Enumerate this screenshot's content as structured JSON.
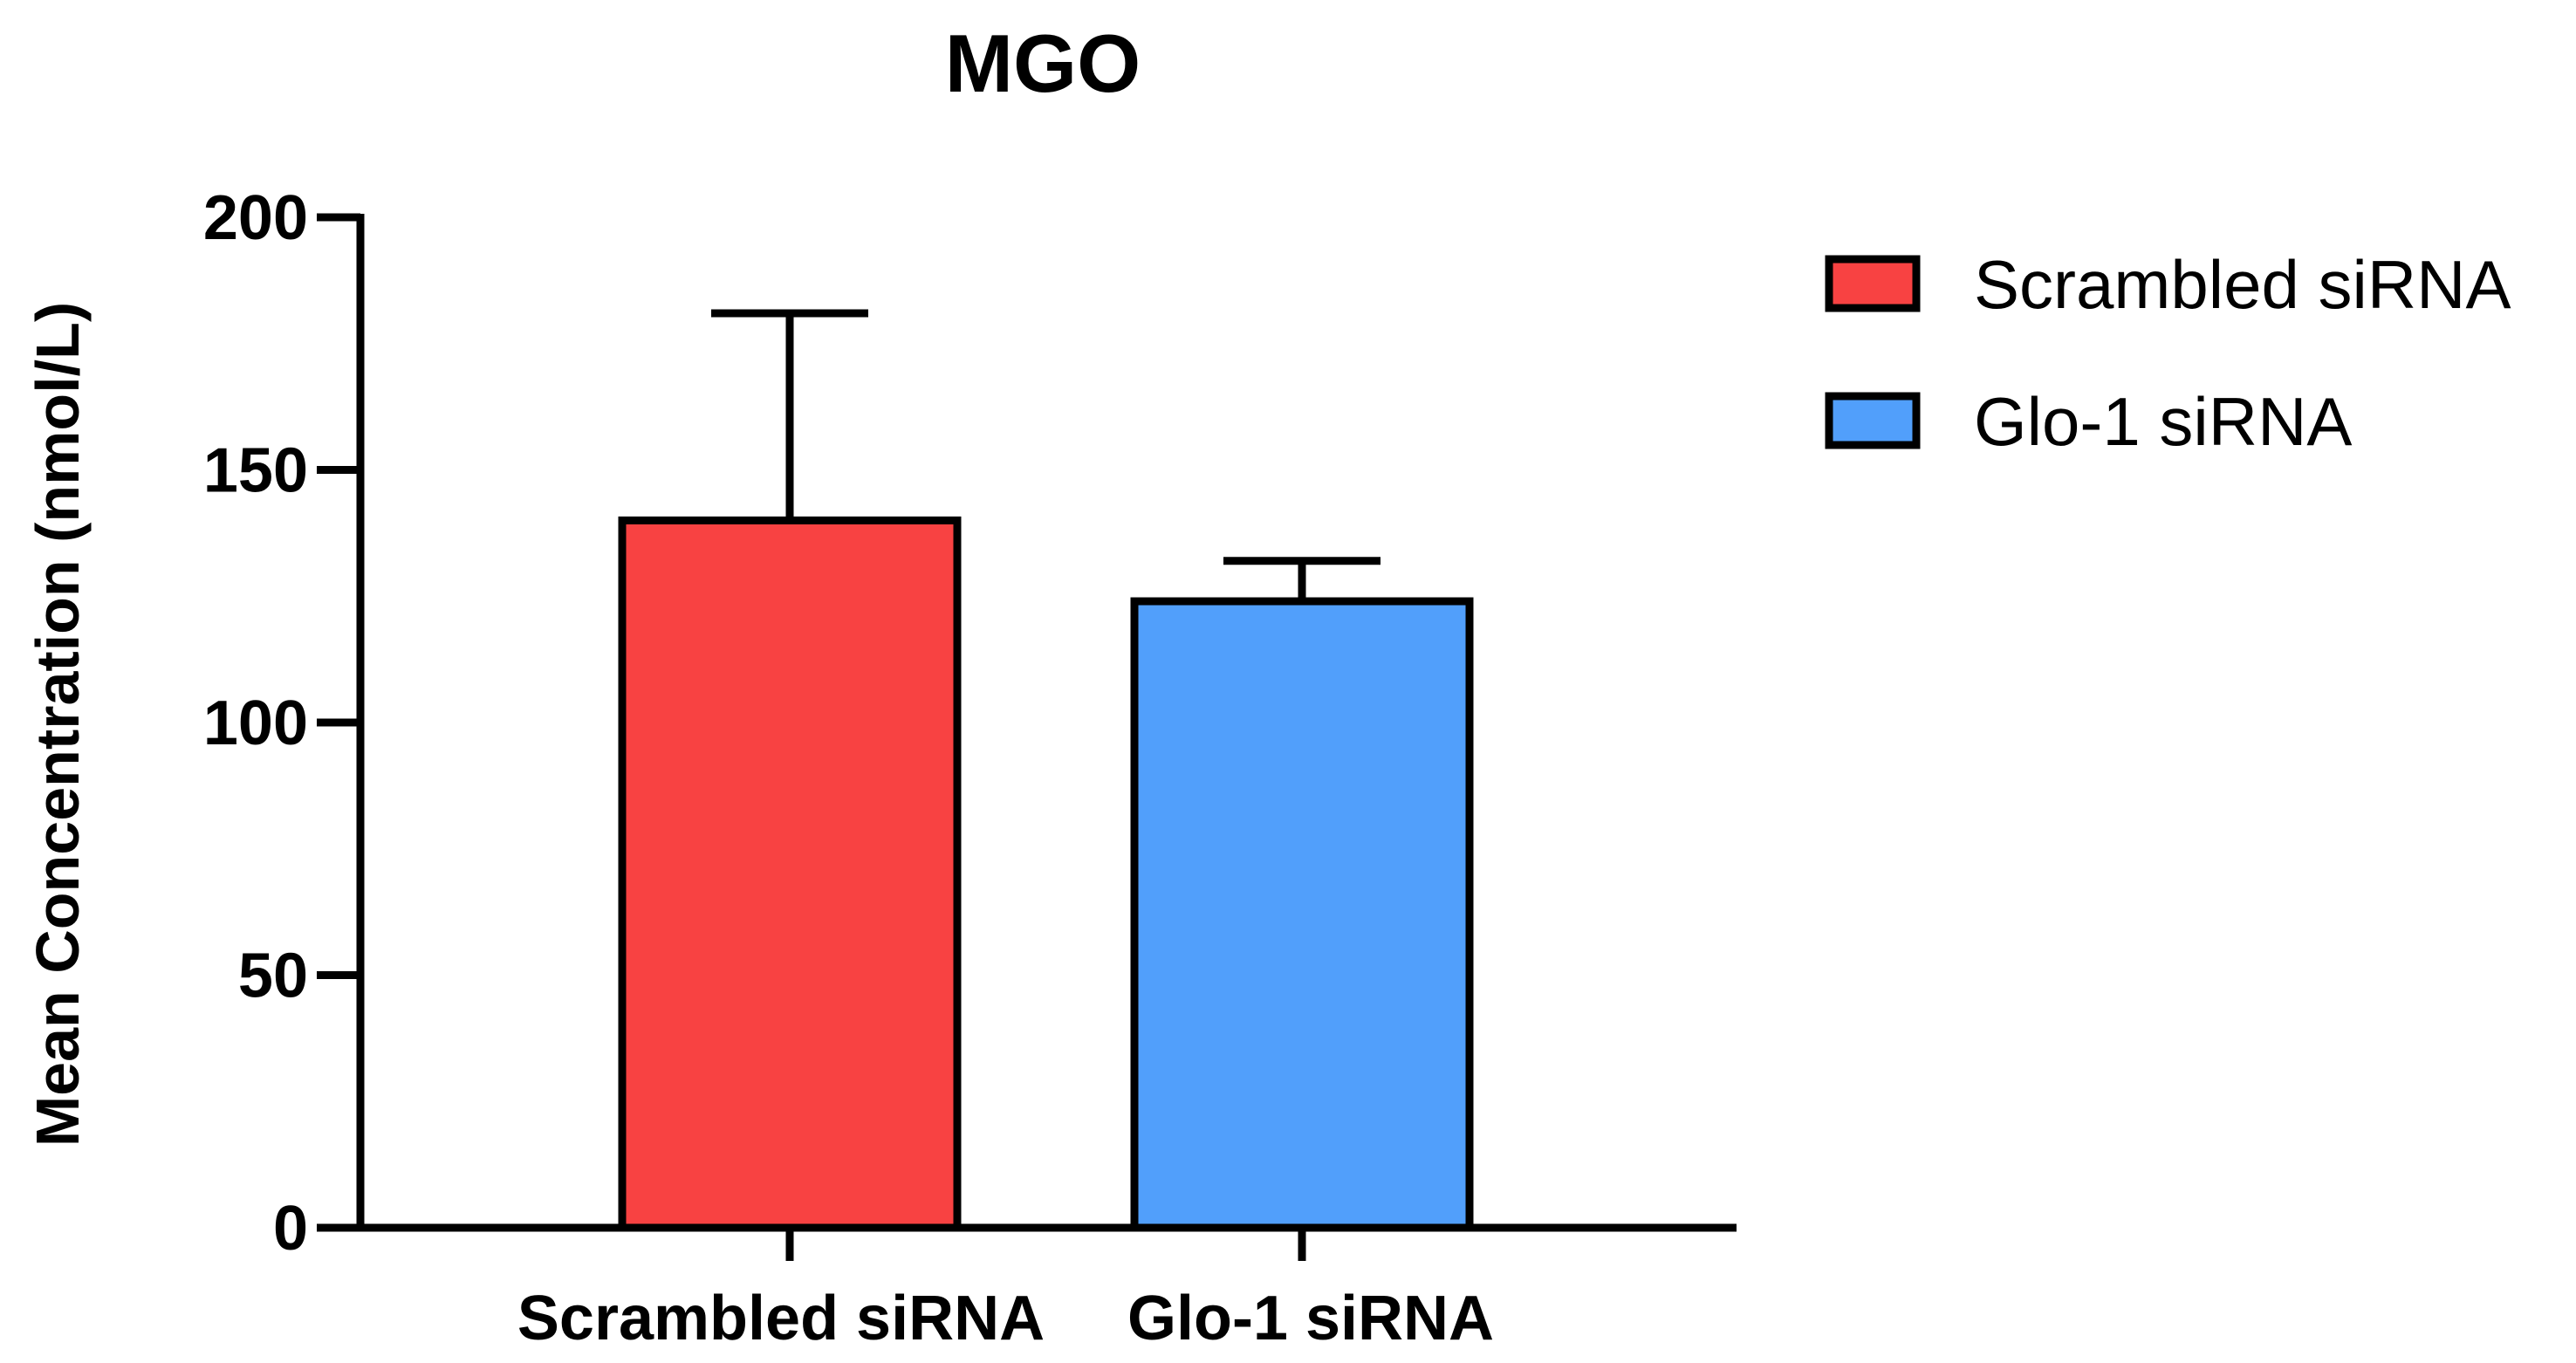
{
  "chart_data": {
    "type": "bar",
    "title": "MGO",
    "xlabel": "",
    "ylabel": "Mean Concentration (nmol/L)",
    "categories": [
      "Scrambled siRNA",
      "Glo-1 siRNA"
    ],
    "values": [
      140,
      124
    ],
    "error_upper": [
      181,
      132
    ],
    "ylim": [
      0,
      200
    ],
    "yticks": [
      0,
      50,
      100,
      150,
      200
    ],
    "ytick_labels": [
      "0",
      "50",
      "100",
      "150",
      "200"
    ],
    "grid": false,
    "legend": {
      "placement": "right",
      "entries": [
        {
          "label": "Scrambled siRNA",
          "color": "#f84242"
        },
        {
          "label": "Glo-1 siRNA",
          "color": "#519ffb"
        }
      ]
    },
    "colors": [
      "#f84242",
      "#519ffb"
    ]
  }
}
